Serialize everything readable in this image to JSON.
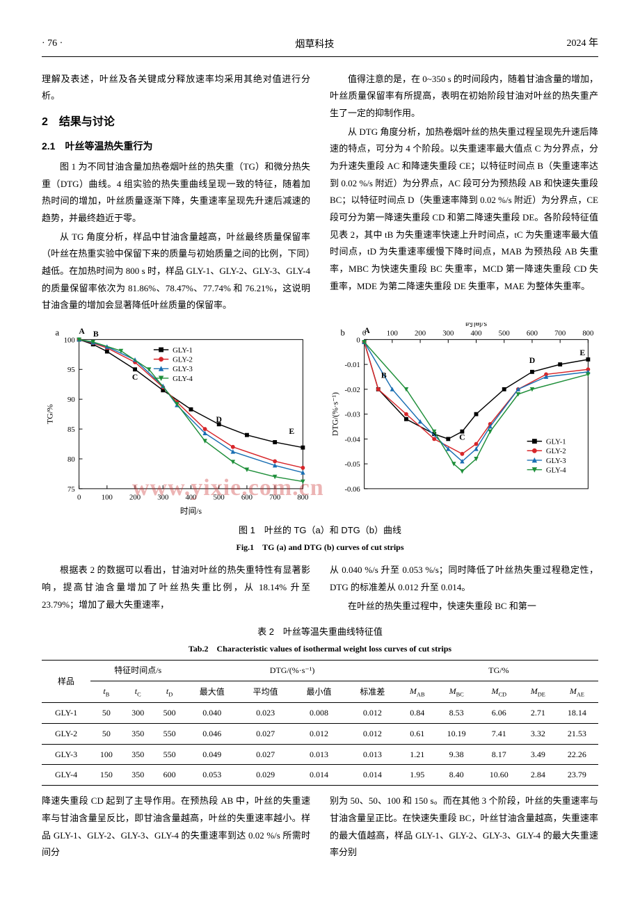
{
  "header": {
    "page": "· 76 ·",
    "journal": "烟草科技",
    "year": "2024 年"
  },
  "text": {
    "p0a": "理解及表述，叶丝及各关键成分释放速率均采用其绝对值进行分析。",
    "sec2": "2　结果与讨论",
    "sec21": "2.1　叶丝等温热失重行为",
    "p1": "图 1 为不同甘油含量加热卷烟叶丝的热失重（TG）和微分热失重（DTG）曲线。4 组实验的热失重曲线呈现一致的特征，随着加热时间的增加，叶丝质量逐渐下降，失重速率呈现先升速后减速的趋势，并最终趋近于零。",
    "p2": "从 TG 角度分析，样品中甘油含量越高，叶丝最终质量保留率（叶丝在热重实验中保留下来的质量与初始质量之间的比例，下同）越低。在加热时间为 800 s 时，样品 GLY-1、GLY-2、GLY-3、GLY-4 的质量保留率依次为 81.86%、78.47%、77.74% 和 76.21%，这说明甘油含量的增加会显著降低叶丝质量的保留率。",
    "p3": "值得注意的是，在 0~350 s 的时间段内，随着甘油含量的增加，叶丝质量保留率有所提高，表明在初始阶段甘油对叶丝的热失重产生了一定的抑制作用。",
    "p4": "从 DTG 角度分析，加热卷烟叶丝的热失重过程呈现先升速后降速的特点，可分为 4 个阶段。以失重速率最大值点 C 为分界点，分为升速失重段 AC 和降速失重段 CE；以特征时间点 B（失重速率达到 0.02 %/s 附近）为分界点，AC 段可分为预热段 AB 和快速失重段 BC；以特征时间点 D（失重速率降到 0.02 %/s 附近）为分界点，CE 段可分为第一降速失重段 CD 和第二降速失重段 DE。各阶段特征值见表 2，其中 tB 为失重速率快速上升时间点，tC 为失重速率最大值时间点，tD 为失重速率缓慢下降时间点，MAB 为预热段 AB 失重率，MBC 为快速失重段 BC 失重率，MCD 第一降速失重段 CD 失重率，MDE 为第二降速失重段 DE 失重率，MAE 为整体失重率。",
    "p5": "根据表 2 的数据可以看出，甘油对叶丝的热失重特性有显著影响，提高甘油含量增加了叶丝热失重比例，从 18.14% 升至 23.79%；增加了最大失重速率，",
    "p6": "从 0.040 %/s 升至 0.053 %/s；同时降低了叶丝热失重过程稳定性，DTG 的标准差从 0.012 升至 0.014。",
    "p7": "在叶丝的热失重过程中，快速失重段 BC 和第一",
    "p8": "降速失重段 CD 起到了主导作用。在预热段 AB 中，叶丝的失重速率与甘油含量呈反比，即甘油含量越高，叶丝的失重速率越小。样品 GLY-1、GLY-2、GLY-3、GLY-4 的失重速率到达 0.02 %/s 所需时间分",
    "p9": "别为 50、50、100 和 150 s。而在其他 3 个阶段，叶丝的失重速率与甘油含量呈正比。在快速失重段 BC，叶丝甘油含量越高，失重速率的最大值越高，样品 GLY-1、GLY-2、GLY-3、GLY-4 的最大失重速率分别"
  },
  "figure1": {
    "caption_cn": "图 1　叶丝的 TG（a）和 DTG（b）曲线",
    "caption_en": "Fig.1　TG (a) and DTG (b) curves of cut strips",
    "watermark": "www.yixie.com.cn",
    "panel_a": {
      "label": "a",
      "xaxis": "时间/s",
      "yaxis": "TG/%",
      "xlim": [
        0,
        800
      ],
      "xtick_step": 100,
      "ylim": [
        75,
        100
      ],
      "ytick_step": 5,
      "series_labels": [
        "GLY-1",
        "GLY-2",
        "GLY-3",
        "GLY-4"
      ],
      "series_colors": [
        "#000000",
        "#d7262a",
        "#1a6fb3",
        "#1f8f3a"
      ],
      "markers": [
        "square",
        "circle",
        "triangle",
        "inverted-triangle"
      ],
      "line_width": 1.5,
      "points_labels": [
        "A",
        "B",
        "C",
        "D",
        "E"
      ],
      "series_xy": {
        "GLY-1": [
          [
            0,
            100
          ],
          [
            50,
            99.2
          ],
          [
            100,
            98.0
          ],
          [
            200,
            95.0
          ],
          [
            300,
            91.5
          ],
          [
            400,
            88.3
          ],
          [
            500,
            85.8
          ],
          [
            600,
            84.0
          ],
          [
            700,
            82.8
          ],
          [
            800,
            81.9
          ]
        ],
        "GLY-2": [
          [
            0,
            100
          ],
          [
            50,
            99.4
          ],
          [
            100,
            98.6
          ],
          [
            200,
            96.2
          ],
          [
            300,
            92.0
          ],
          [
            350,
            89.5
          ],
          [
            450,
            85.0
          ],
          [
            550,
            82.0
          ],
          [
            700,
            79.6
          ],
          [
            800,
            78.5
          ]
        ],
        "GLY-3": [
          [
            0,
            100
          ],
          [
            50,
            99.5
          ],
          [
            100,
            98.8
          ],
          [
            200,
            96.6
          ],
          [
            300,
            92.2
          ],
          [
            350,
            89.0
          ],
          [
            450,
            84.3
          ],
          [
            550,
            81.2
          ],
          [
            700,
            78.9
          ],
          [
            800,
            77.7
          ]
        ],
        "GLY-4": [
          [
            0,
            100
          ],
          [
            50,
            99.6
          ],
          [
            150,
            98.1
          ],
          [
            250,
            95.0
          ],
          [
            350,
            89.2
          ],
          [
            450,
            83.0
          ],
          [
            550,
            79.5
          ],
          [
            600,
            78.2
          ],
          [
            700,
            77.0
          ],
          [
            800,
            76.2
          ]
        ]
      }
    },
    "panel_b": {
      "label": "b",
      "xaxis": "时间/s",
      "yaxis": "DTG/(%·s⁻¹)",
      "xlim": [
        0,
        800
      ],
      "xtick_step": 100,
      "ylim": [
        -0.06,
        0
      ],
      "ytick_step": 0.01,
      "series_labels": [
        "GLY-1",
        "GLY-2",
        "GLY-3",
        "GLY-4"
      ],
      "series_colors": [
        "#000000",
        "#d7262a",
        "#1a6fb3",
        "#1f8f3a"
      ],
      "markers": [
        "square",
        "circle",
        "triangle",
        "inverted-triangle"
      ],
      "line_width": 1.5,
      "points_labels": [
        "A",
        "B",
        "C",
        "D",
        "E"
      ],
      "series_xy": {
        "GLY-1": [
          [
            0,
            -0.001
          ],
          [
            50,
            -0.02
          ],
          [
            150,
            -0.032
          ],
          [
            250,
            -0.038
          ],
          [
            300,
            -0.04
          ],
          [
            350,
            -0.037
          ],
          [
            400,
            -0.03
          ],
          [
            500,
            -0.02
          ],
          [
            600,
            -0.013
          ],
          [
            700,
            -0.01
          ],
          [
            800,
            -0.008
          ]
        ],
        "GLY-2": [
          [
            0,
            -0.001
          ],
          [
            50,
            -0.02
          ],
          [
            150,
            -0.03
          ],
          [
            250,
            -0.04
          ],
          [
            350,
            -0.046
          ],
          [
            400,
            -0.042
          ],
          [
            450,
            -0.034
          ],
          [
            550,
            -0.02
          ],
          [
            650,
            -0.014
          ],
          [
            800,
            -0.012
          ]
        ],
        "GLY-3": [
          [
            0,
            -0.001
          ],
          [
            100,
            -0.02
          ],
          [
            200,
            -0.033
          ],
          [
            300,
            -0.044
          ],
          [
            350,
            -0.049
          ],
          [
            400,
            -0.044
          ],
          [
            450,
            -0.035
          ],
          [
            550,
            -0.02
          ],
          [
            650,
            -0.015
          ],
          [
            800,
            -0.013
          ]
        ],
        "GLY-4": [
          [
            0,
            -0.001
          ],
          [
            150,
            -0.02
          ],
          [
            250,
            -0.037
          ],
          [
            320,
            -0.05
          ],
          [
            350,
            -0.053
          ],
          [
            400,
            -0.048
          ],
          [
            450,
            -0.037
          ],
          [
            550,
            -0.022
          ],
          [
            600,
            -0.02
          ],
          [
            800,
            -0.014
          ]
        ]
      }
    }
  },
  "table2": {
    "caption_cn": "表 2　叶丝等温失重曲线特征值",
    "caption_en": "Tab.2　Characteristic values of isothermal weight loss curves of cut strips",
    "group_headers": [
      "样品",
      "特征时间点/s",
      "DTG/(%·s⁻¹)",
      "TG/%"
    ],
    "sub_headers_time": [
      "tB",
      "tC",
      "tD"
    ],
    "sub_headers_dtg": [
      "最大值",
      "平均值",
      "最小值",
      "标准差"
    ],
    "sub_headers_tg": [
      "MAB",
      "MBC",
      "MCD",
      "MDE",
      "MAE"
    ],
    "rows": [
      {
        "sample": "GLY-1",
        "tB": 50,
        "tC": 300,
        "tD": 500,
        "dtg_max": 0.04,
        "dtg_avg": 0.023,
        "dtg_min": 0.008,
        "dtg_sd": 0.012,
        "MAB": 0.84,
        "MBC": 8.53,
        "MCD": 6.06,
        "MDE": 2.71,
        "MAE": 18.14
      },
      {
        "sample": "GLY-2",
        "tB": 50,
        "tC": 350,
        "tD": 550,
        "dtg_max": 0.046,
        "dtg_avg": 0.027,
        "dtg_min": 0.012,
        "dtg_sd": 0.012,
        "MAB": 0.61,
        "MBC": 10.19,
        "MCD": 7.41,
        "MDE": 3.32,
        "MAE": 21.53
      },
      {
        "sample": "GLY-3",
        "tB": 100,
        "tC": 350,
        "tD": 550,
        "dtg_max": 0.049,
        "dtg_avg": 0.027,
        "dtg_min": 0.013,
        "dtg_sd": 0.013,
        "MAB": 1.21,
        "MBC": 9.38,
        "MCD": 8.17,
        "MDE": 3.49,
        "MAE": 22.26
      },
      {
        "sample": "GLY-4",
        "tB": 150,
        "tC": 350,
        "tD": 600,
        "dtg_max": 0.053,
        "dtg_avg": 0.029,
        "dtg_min": 0.014,
        "dtg_sd": 0.014,
        "MAB": 1.95,
        "MBC": 8.4,
        "MCD": 10.6,
        "MDE": 2.84,
        "MAE": 23.79
      }
    ]
  }
}
